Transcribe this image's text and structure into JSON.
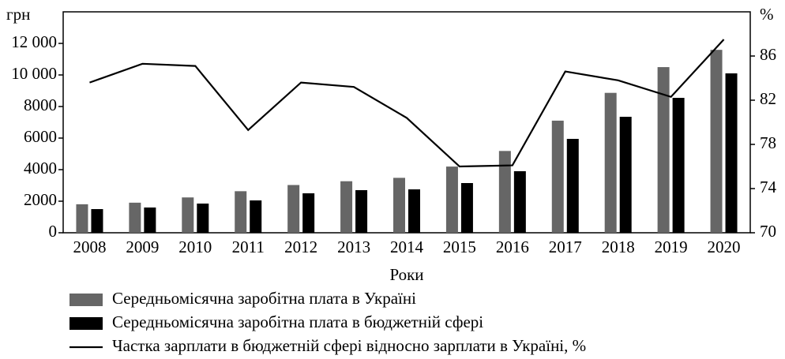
{
  "chart_data": {
    "type": "bar-line",
    "y_label": "грн",
    "y2_label": "%",
    "x_label": "Роки",
    "categories": [
      "2008",
      "2009",
      "2010",
      "2011",
      "2012",
      "2013",
      "2014",
      "2015",
      "2016",
      "2017",
      "2018",
      "2019",
      "2020"
    ],
    "series": [
      {
        "name": "Середньомісячна заробітна плата в Україні",
        "color": "#666666",
        "type": "bar",
        "values": [
          1806,
          1906,
          2239,
          2633,
          3026,
          3265,
          3480,
          4195,
          5183,
          7104,
          8865,
          10497,
          11591
        ]
      },
      {
        "name": "Середньомісячна заробітна плата в бюджетній сфері",
        "color": "#000000",
        "type": "bar",
        "values": [
          1500,
          1600,
          1850,
          2050,
          2500,
          2700,
          2750,
          3150,
          3900,
          5950,
          7350,
          8550,
          10100
        ]
      },
      {
        "name": "Частка зарплати в бюджетній сфері відносно зарплати в Україні, %",
        "color": "#000000",
        "type": "line",
        "axis": "y2",
        "values": [
          83.6,
          85.3,
          85.1,
          79.3,
          83.6,
          83.2,
          80.4,
          76.0,
          76.1,
          84.6,
          83.8,
          82.3,
          87.5
        ]
      }
    ],
    "ylim": [
      0,
      14000
    ],
    "yticks": [
      0,
      2000,
      4000,
      6000,
      8000,
      {
        "value": 10000,
        "label": "10 000"
      },
      {
        "value": 12000,
        "label": "12 000"
      }
    ],
    "y2lim": [
      70,
      90
    ],
    "y2ticks": [
      70,
      74,
      78,
      82,
      86
    ]
  }
}
